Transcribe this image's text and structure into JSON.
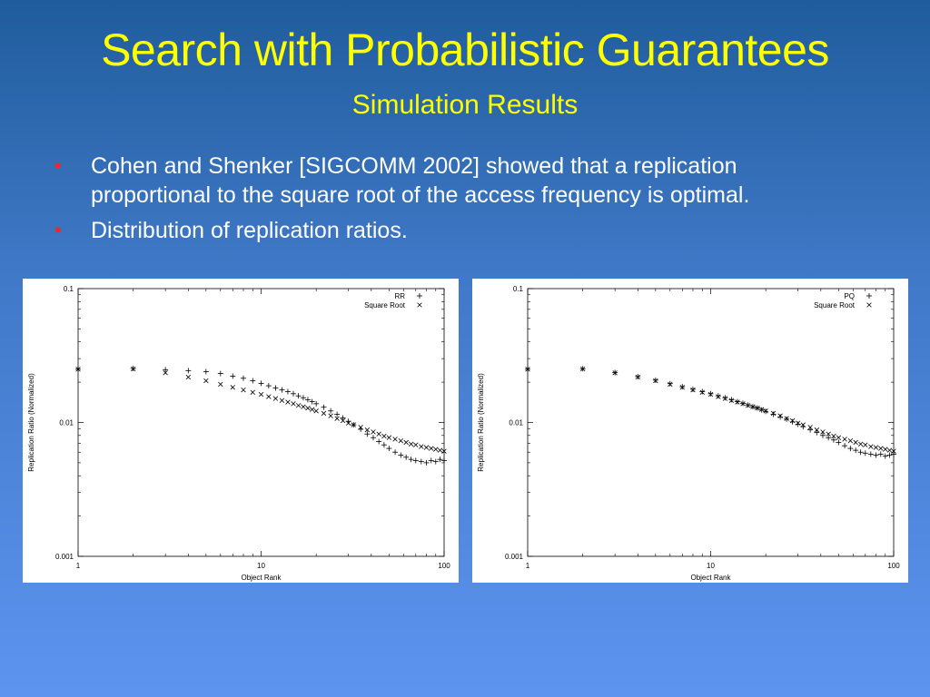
{
  "slide": {
    "title": "Search with Probabilistic Guarantees",
    "subtitle": "Simulation Results",
    "bullets": [
      {
        "text_line1": "Cohen and Shenker [SIGCOMM 2002] showed that a replication",
        "text_line2": "proportional to the square root of the access frequency is optimal."
      },
      {
        "text_line1": "Distribution of replication ratios.",
        "text_line2": ""
      }
    ],
    "bullet_glyph": "•"
  },
  "colors": {
    "title": "#ffff00",
    "text": "#ffffff",
    "bullet": "#ff2020"
  },
  "chart_data": [
    {
      "type": "scatter",
      "title": "",
      "xlabel": "Object Rank",
      "ylabel": "Replication Ratio (Normalized)",
      "xscale": "log",
      "yscale": "log",
      "xlim": [
        1,
        100
      ],
      "ylim": [
        0.001,
        0.1
      ],
      "xticks": [
        "1",
        "10",
        "100"
      ],
      "yticks": [
        "0.001",
        "0.01",
        "0.1"
      ],
      "legend_position": "top-right",
      "series": [
        {
          "name": "RR",
          "marker": "+",
          "x": [
            1,
            2,
            3,
            4,
            5,
            6,
            7,
            8,
            9,
            10,
            11,
            12,
            13,
            14,
            15,
            16,
            17,
            18,
            19,
            20,
            22,
            24,
            26,
            28,
            30,
            32,
            35,
            38,
            41,
            44,
            47,
            50,
            54,
            58,
            62,
            66,
            70,
            75,
            80,
            85,
            90,
            95,
            100
          ],
          "y": [
            0.025,
            0.0253,
            0.0248,
            0.0244,
            0.024,
            0.0232,
            0.0222,
            0.0214,
            0.0205,
            0.0196,
            0.0188,
            0.0181,
            0.0175,
            0.017,
            0.0164,
            0.0158,
            0.0153,
            0.0148,
            0.0143,
            0.0138,
            0.013,
            0.0122,
            0.0115,
            0.0108,
            0.0102,
            0.0096,
            0.0089,
            0.0082,
            0.0077,
            0.0072,
            0.0068,
            0.0064,
            0.006,
            0.0057,
            0.0055,
            0.0053,
            0.0052,
            0.0051,
            0.005,
            0.0052,
            0.0051,
            0.0053,
            0.0052
          ]
        },
        {
          "name": "Square Root",
          "marker": "×",
          "x": [
            1,
            2,
            3,
            4,
            5,
            6,
            7,
            8,
            9,
            10,
            11,
            12,
            13,
            14,
            15,
            16,
            17,
            18,
            19,
            20,
            22,
            24,
            26,
            28,
            30,
            32,
            35,
            38,
            41,
            44,
            47,
            50,
            54,
            58,
            62,
            66,
            70,
            75,
            80,
            85,
            90,
            95,
            100
          ],
          "y": [
            0.025,
            0.0251,
            0.0235,
            0.0218,
            0.0205,
            0.0193,
            0.0183,
            0.0175,
            0.0168,
            0.0162,
            0.0156,
            0.0151,
            0.0146,
            0.0142,
            0.0138,
            0.0134,
            0.0131,
            0.0128,
            0.0125,
            0.0122,
            0.0117,
            0.0112,
            0.0107,
            0.0103,
            0.0099,
            0.0096,
            0.0092,
            0.0088,
            0.0085,
            0.0082,
            0.0079,
            0.0077,
            0.0075,
            0.0073,
            0.0071,
            0.0069,
            0.0068,
            0.0066,
            0.0065,
            0.0064,
            0.0063,
            0.0062,
            0.0061
          ]
        }
      ]
    },
    {
      "type": "scatter",
      "title": "",
      "xlabel": "Object Rank",
      "ylabel": "Replication Ratio (Normalized)",
      "xscale": "log",
      "yscale": "log",
      "xlim": [
        1,
        100
      ],
      "ylim": [
        0.001,
        0.1
      ],
      "xticks": [
        "1",
        "10",
        "100"
      ],
      "yticks": [
        "0.001",
        "0.01",
        "0.1"
      ],
      "legend_position": "top-right",
      "series": [
        {
          "name": "PQ",
          "marker": "+",
          "x": [
            1,
            2,
            3,
            4,
            5,
            6,
            7,
            8,
            9,
            10,
            11,
            12,
            13,
            14,
            15,
            16,
            17,
            18,
            19,
            20,
            22,
            24,
            26,
            28,
            30,
            32,
            35,
            38,
            41,
            44,
            47,
            50,
            54,
            58,
            62,
            66,
            70,
            75,
            80,
            85,
            90,
            95,
            100
          ],
          "y": [
            0.025,
            0.0252,
            0.0236,
            0.022,
            0.0207,
            0.0195,
            0.0185,
            0.0177,
            0.017,
            0.0164,
            0.0158,
            0.0153,
            0.0148,
            0.0143,
            0.0139,
            0.0135,
            0.0131,
            0.0128,
            0.0124,
            0.0121,
            0.0115,
            0.011,
            0.0106,
            0.0101,
            0.0097,
            0.0093,
            0.0088,
            0.0084,
            0.008,
            0.0077,
            0.0074,
            0.0071,
            0.0067,
            0.0064,
            0.0062,
            0.006,
            0.0059,
            0.0058,
            0.0057,
            0.0058,
            0.0056,
            0.0057,
            0.0058
          ]
        },
        {
          "name": "Square Root",
          "marker": "×",
          "x": [
            1,
            2,
            3,
            4,
            5,
            6,
            7,
            8,
            9,
            10,
            11,
            12,
            13,
            14,
            15,
            16,
            17,
            18,
            19,
            20,
            22,
            24,
            26,
            28,
            30,
            32,
            35,
            38,
            41,
            44,
            47,
            50,
            54,
            58,
            62,
            66,
            70,
            75,
            80,
            85,
            90,
            95,
            100
          ],
          "y": [
            0.025,
            0.0251,
            0.0235,
            0.0218,
            0.0205,
            0.0193,
            0.0183,
            0.0175,
            0.0168,
            0.0162,
            0.0156,
            0.0151,
            0.0146,
            0.0142,
            0.0138,
            0.0134,
            0.0131,
            0.0128,
            0.0125,
            0.0122,
            0.0117,
            0.0112,
            0.0107,
            0.0103,
            0.0099,
            0.0096,
            0.0092,
            0.0088,
            0.0085,
            0.0082,
            0.0079,
            0.0077,
            0.0075,
            0.0073,
            0.0071,
            0.0069,
            0.0068,
            0.0066,
            0.0065,
            0.0064,
            0.0063,
            0.0062,
            0.0061
          ]
        }
      ]
    }
  ]
}
